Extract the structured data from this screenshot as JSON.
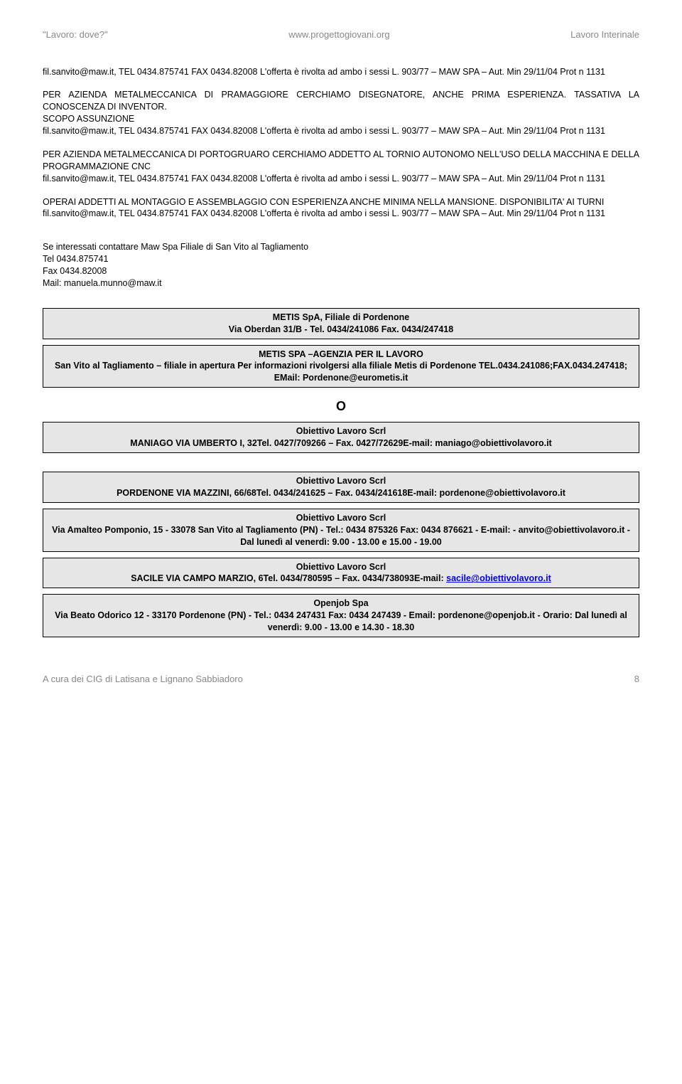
{
  "header": {
    "left": "\"Lavoro: dove?\"",
    "center": "www.progettogiovani.org",
    "right": "Lavoro Interinale"
  },
  "paragraphs": {
    "p1_line1": " fil.sanvito@maw.it, TEL 0434.875741 FAX 0434.82008 L'offerta è rivolta ad ambo i sessi L. 903/77 – MAW SPA – Aut. Min 29/11/04 Prot n 1131",
    "p2_line1": "PER AZIENDA METALMECCANICA DI PRAMAGGIORE CERCHIAMO DISEGNATORE, ANCHE PRIMA ESPERIENZA. TASSATIVA LA CONOSCENZA DI INVENTOR.",
    "p2_line2": "SCOPO ASSUNZIONE",
    "p2_line3": " fil.sanvito@maw.it, TEL 0434.875741 FAX 0434.82008 L'offerta è rivolta ad ambo i sessi L. 903/77 – MAW SPA – Aut. Min 29/11/04 Prot n 1131",
    "p3_line1": "PER AZIENDA METALMECCANICA DI PORTOGRUARO CERCHIAMO ADDETTO AL TORNIO AUTONOMO NELL'USO DELLA MACCHINA E DELLA PROGRAMMAZIONE CNC",
    "p3_line2": " fil.sanvito@maw.it, TEL 0434.875741 FAX 0434.82008 L'offerta è rivolta ad ambo i sessi L. 903/77 – MAW SPA – Aut. Min 29/11/04 Prot n 1131",
    "p4_line1": "OPERAI ADDETTI AL MONTAGGIO E ASSEMBLAGGIO CON ESPERIENZA ANCHE MINIMA NELLA MANSIONE. DISPONIBILITA' AI TURNI",
    "p4_line2": " fil.sanvito@maw.it, TEL 0434.875741 FAX 0434.82008 L'offerta è rivolta ad ambo i sessi L. 903/77 – MAW SPA – Aut. Min 29/11/04 Prot n 1131",
    "contact_line1": "Se interessati contattare Maw Spa Filiale di San Vito al Tagliamento",
    "contact_line2": "Tel 0434.875741",
    "contact_line3": "Fax 0434.82008",
    "contact_line4": "Mail: manuela.munno@maw.it"
  },
  "boxes": {
    "metis1_l1": "METIS SpA, Filiale di Pordenone",
    "metis1_l2": "Via Oberdan 31/B - Tel. 0434/241086 Fax. 0434/247418",
    "metis2_l1": "METIS SPA –AGENZIA PER IL LAVORO",
    "metis2_l2": "San Vito al Tagliamento – filiale in apertura Per informazioni rivolgersi alla filiale Metis di Pordenone TEL.0434.241086;FAX.0434.247418; EMail: Pordenone@eurometis.it",
    "bigO": "O",
    "ob1_l1": "Obiettivo Lavoro Scrl",
    "ob1_l2": "MANIAGO VIA UMBERTO I, 32Tel. 0427/709266 – Fax. 0427/72629E-mail: maniago@obiettivolavoro.it",
    "ob2_l1": "Obiettivo Lavoro Scrl",
    "ob2_l2": "PORDENONE VIA MAZZINI, 66/68Tel. 0434/241625 – Fax. 0434/241618E-mail: pordenone@obiettivolavoro.it",
    "ob3_l1": "Obiettivo Lavoro Scrl",
    "ob3_l2": "Via Amalteo Pomponio, 15 - 33078 San Vito al Tagliamento (PN) - Tel.: 0434 875326 Fax: 0434 876621 - E-mail: - anvito@obiettivolavoro.it - Dal lunedì al venerdì: 9.00 - 13.00 e 15.00 - 19.00",
    "ob4_l1": "Obiettivo Lavoro Scrl",
    "ob4_l2a": "SACILE VIA CAMPO MARZIO, 6Tel. 0434/780595 – Fax. 0434/738093E-mail: ",
    "ob4_link": "sacile@obiettivolavoro.it",
    "openjob_l1": "Openjob Spa",
    "openjob_l2": "Via Beato Odorico 12 - 33170 Pordenone (PN) - Tel.: 0434 247431 Fax: 0434 247439 - Email: pordenone@openjob.it - Orario: Dal lunedì al venerdì: 9.00 - 13.00 e 14.30 - 18.30"
  },
  "footer": {
    "left": "A cura dei CIG di Latisana e Lignano Sabbiadoro",
    "page": "8"
  }
}
